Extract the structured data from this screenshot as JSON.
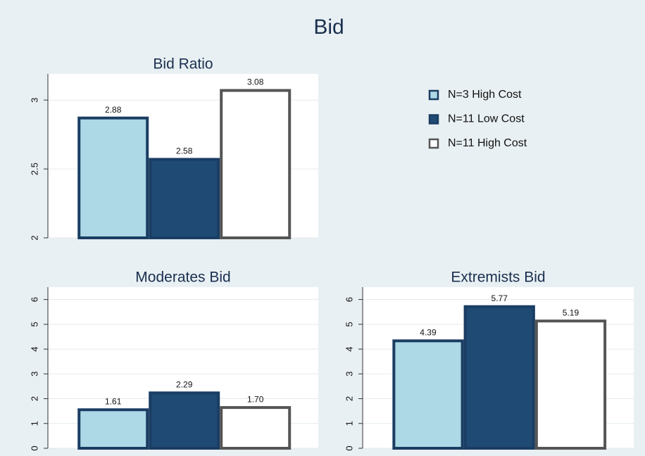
{
  "title": "Bid",
  "legend": "upper right",
  "chart_data": [
    {
      "type": "bar",
      "title": "Bid Ratio",
      "ylim": [
        2,
        3.19
      ],
      "yticks": [
        2,
        2.5,
        3
      ],
      "grid": true,
      "series": [
        {
          "name": "N=3 High Cost",
          "color": "#add8e6",
          "edgecolor": "#1a3d63",
          "values": [
            2.88
          ]
        },
        {
          "name": "N=11 Low Cost",
          "color": "#1f4a73",
          "edgecolor": "#1a3d63",
          "values": [
            2.58
          ]
        },
        {
          "name": "N=11 High Cost",
          "color": "#ffffff",
          "edgecolor": "#555555",
          "values": [
            3.08
          ]
        }
      ]
    },
    {
      "type": "bar",
      "title": "Moderates Bid",
      "ylim": [
        0,
        6.5
      ],
      "yticks": [
        0,
        1,
        2,
        3,
        4,
        5,
        6
      ],
      "grid": true,
      "series": [
        {
          "name": "N=3 High Cost",
          "color": "#add8e6",
          "edgecolor": "#1a3d63",
          "values": [
            1.61
          ]
        },
        {
          "name": "N=11 Low Cost",
          "color": "#1f4a73",
          "edgecolor": "#1a3d63",
          "values": [
            2.29
          ]
        },
        {
          "name": "N=11 High Cost",
          "color": "#ffffff",
          "edgecolor": "#555555",
          "values": [
            1.7
          ],
          "value_labels": [
            "1.70"
          ]
        }
      ]
    },
    {
      "type": "bar",
      "title": "Extremists Bid",
      "ylim": [
        0,
        6.5
      ],
      "yticks": [
        0,
        1,
        2,
        3,
        4,
        5,
        6
      ],
      "grid": true,
      "series": [
        {
          "name": "N=3 High Cost",
          "color": "#add8e6",
          "edgecolor": "#1a3d63",
          "values": [
            4.39
          ]
        },
        {
          "name": "N=11 Low Cost",
          "color": "#1f4a73",
          "edgecolor": "#1a3d63",
          "values": [
            5.77
          ]
        },
        {
          "name": "N=11 High Cost",
          "color": "#ffffff",
          "edgecolor": "#555555",
          "values": [
            5.19
          ]
        }
      ]
    }
  ]
}
